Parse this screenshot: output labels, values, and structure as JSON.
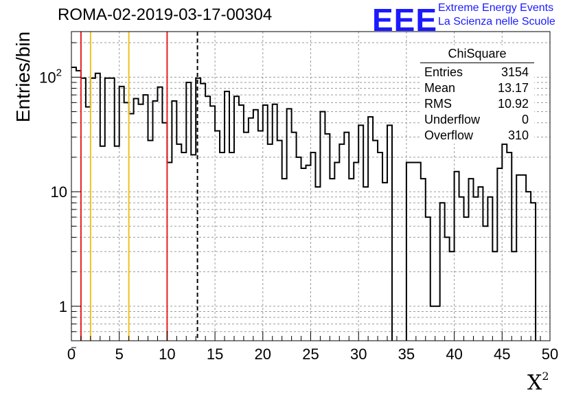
{
  "chart_data": {
    "type": "bar",
    "title": "ROMA-02-2019-03-17-00304",
    "xlabel": "X",
    "xlabel_sup": "2",
    "ylabel": "Entries/bin",
    "xlim": [
      0,
      50
    ],
    "ylim": [
      0.5,
      250
    ],
    "yscale": "log",
    "grid": true,
    "bin_width": 0.5,
    "x_ticks": [
      0,
      5,
      10,
      15,
      20,
      25,
      30,
      35,
      40,
      45,
      50
    ],
    "y_ticks": [
      {
        "value": 1,
        "label": "1"
      },
      {
        "value": 10,
        "label": "10"
      },
      {
        "value": 100,
        "label": "10",
        "sup": "2"
      }
    ],
    "values": [
      122,
      114,
      98,
      55,
      98,
      108,
      25,
      98,
      98,
      25,
      83,
      60,
      48,
      65,
      58,
      70,
      28,
      62,
      82,
      40,
      18,
      62,
      26,
      22,
      90,
      21,
      98,
      88,
      68,
      56,
      34,
      22,
      75,
      22,
      68,
      57,
      33,
      44,
      52,
      34,
      57,
      26,
      58,
      28,
      13,
      53,
      33,
      20,
      16,
      17,
      22,
      11,
      50,
      32,
      13,
      18,
      26,
      33,
      13,
      18,
      38,
      11,
      45,
      28,
      22,
      12,
      38,
      0.4,
      0.4,
      0.4,
      18,
      18,
      18,
      13,
      6,
      1,
      1,
      8,
      4,
      3,
      15,
      9,
      6,
      13,
      9,
      11,
      5,
      9,
      3,
      16,
      26,
      22,
      3,
      14,
      14,
      10,
      8,
      0.2
    ],
    "reference_lines": [
      {
        "x": 1,
        "color": "#e82020",
        "style": "solid"
      },
      {
        "x": 2,
        "color": "#f0c020",
        "style": "solid"
      },
      {
        "x": 6,
        "color": "#f0c020",
        "style": "solid"
      },
      {
        "x": 10,
        "color": "#e82020",
        "style": "solid"
      },
      {
        "x": 13.17,
        "color": "#000000",
        "style": "dashed"
      }
    ],
    "stats_box": {
      "title": "ChiSquare",
      "rows": [
        {
          "label": "Entries",
          "value": "3154"
        },
        {
          "label": "Mean",
          "value": "13.17"
        },
        {
          "label": "RMS",
          "value": "10.92"
        },
        {
          "label": "Underflow",
          "value": "0"
        },
        {
          "label": "Overflow",
          "value": "310"
        }
      ]
    }
  },
  "logo": {
    "mark": "EEE",
    "line1": "Extreme Energy Events",
    "line2": "La Scienza nelle Scuole",
    "color": "#1a1aff"
  }
}
